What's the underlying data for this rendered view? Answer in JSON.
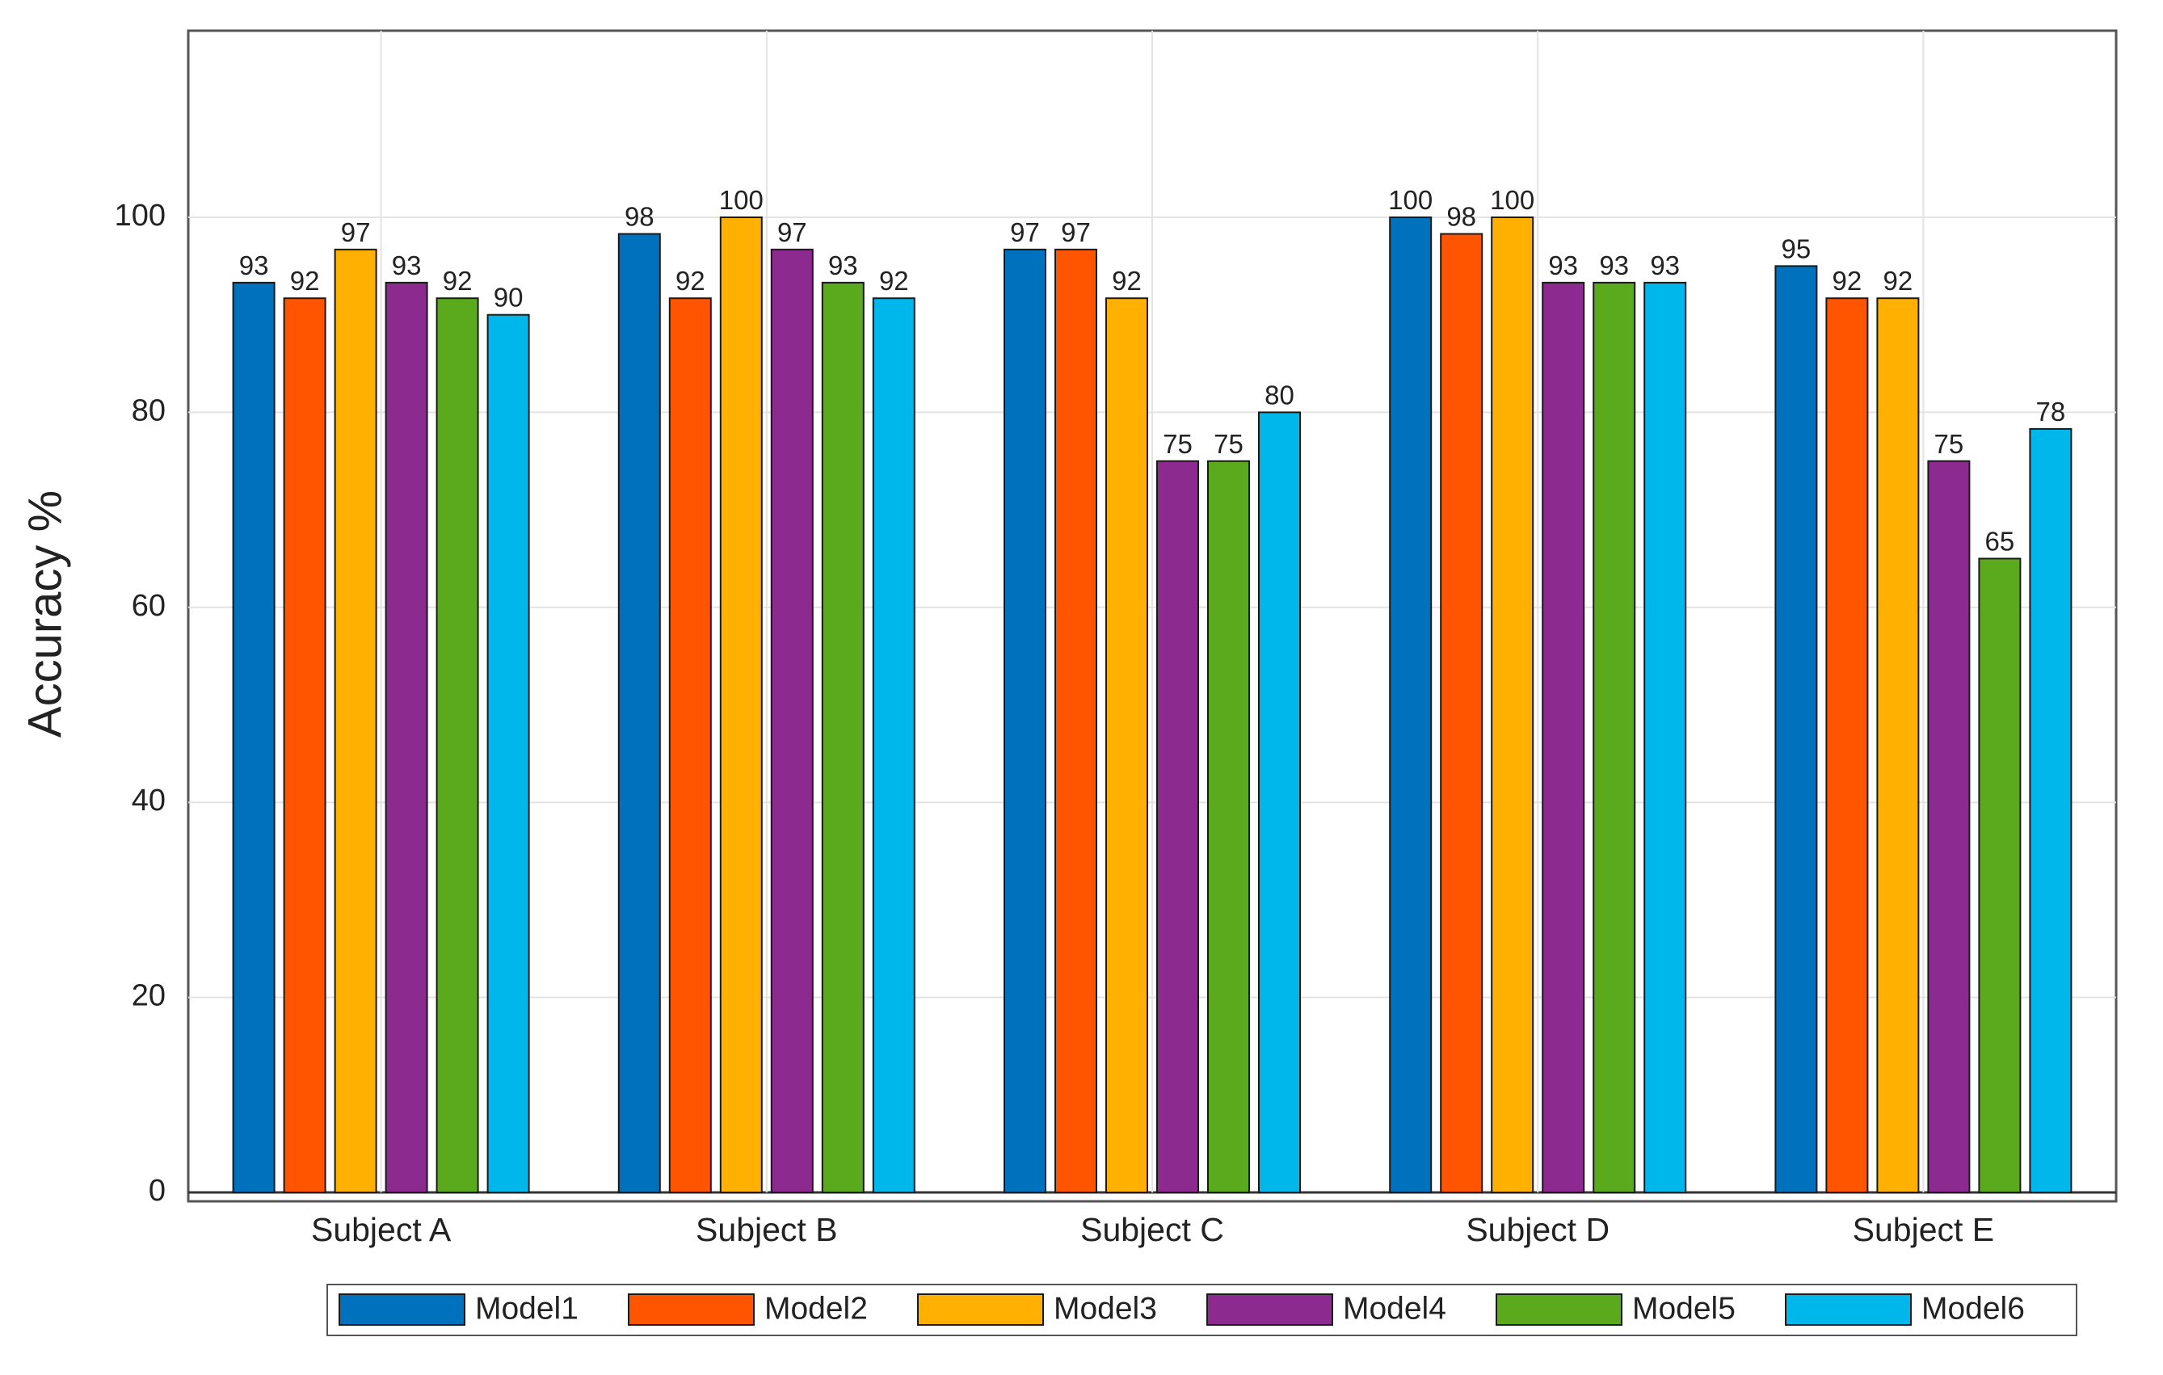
{
  "chart_data": {
    "type": "bar",
    "title": "",
    "xlabel": "",
    "ylabel": "Accuracy %",
    "ylim": [
      0,
      120
    ],
    "yticks": [
      0,
      20,
      40,
      60,
      80,
      100
    ],
    "grid": true,
    "legend_position": "bottom",
    "categories": [
      "Subject A",
      "Subject B",
      "Subject C",
      "Subject D",
      "Subject E"
    ],
    "series": [
      {
        "name": "Model1",
        "color": "#0072BD",
        "values": [
          93.3,
          98.3,
          96.7,
          100,
          95
        ],
        "labels": [
          "93",
          "98",
          "97",
          "100",
          "95"
        ]
      },
      {
        "name": "Model2",
        "color": "#FF5400",
        "values": [
          91.7,
          91.7,
          96.7,
          98.3,
          91.7
        ],
        "labels": [
          "92",
          "92",
          "97",
          "98",
          "92"
        ]
      },
      {
        "name": "Model3",
        "color": "#FFB000",
        "values": [
          96.7,
          100,
          91.7,
          100,
          91.7
        ],
        "labels": [
          "97",
          "100",
          "92",
          "100",
          "92"
        ]
      },
      {
        "name": "Model4",
        "color": "#8C2A8F",
        "values": [
          93.3,
          96.7,
          75,
          93.3,
          75
        ],
        "labels": [
          "93",
          "97",
          "75",
          "93",
          "75"
        ]
      },
      {
        "name": "Model5",
        "color": "#5BAA1E",
        "values": [
          91.7,
          93.3,
          75,
          93.3,
          65
        ],
        "labels": [
          "92",
          "93",
          "75",
          "93",
          "65"
        ]
      },
      {
        "name": "Model6",
        "color": "#00B7EB",
        "values": [
          90,
          91.7,
          80,
          93.3,
          78.3
        ],
        "labels": [
          "90",
          "92",
          "80",
          "93",
          "78"
        ]
      }
    ]
  }
}
